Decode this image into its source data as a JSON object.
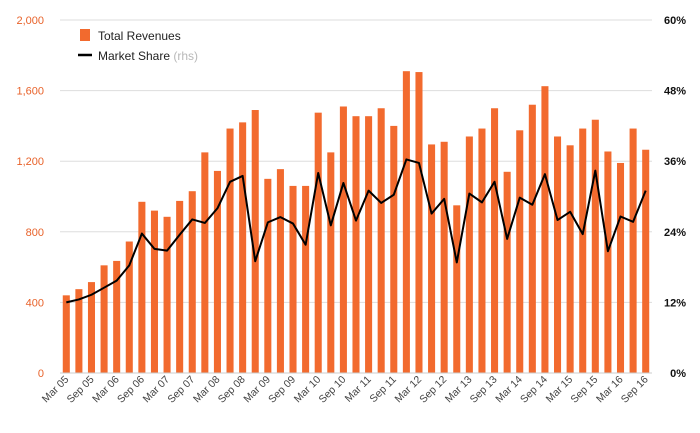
{
  "colors": {
    "bar": "#f26a2e",
    "line": "#000000",
    "grid": "#dddddd",
    "left_axis_text": "#e8622a",
    "right_axis_text": "#111111"
  },
  "chart_data": {
    "type": "bar",
    "title": "",
    "xlabel": "",
    "ylabel": "",
    "categories": [
      "Mar 05",
      "Jun 05",
      "Sep 05",
      "Dec 05",
      "Mar 06",
      "Jun 06",
      "Sep 06",
      "Dec 06",
      "Mar 07",
      "Jun 07",
      "Sep 07",
      "Dec 07",
      "Mar 08",
      "Jun 08",
      "Sep 08",
      "Dec 08",
      "Mar 09",
      "Jun 09",
      "Sep 09",
      "Dec 09",
      "Mar 10",
      "Jun 10",
      "Sep 10",
      "Dec 10",
      "Mar 11",
      "Jun 11",
      "Sep 11",
      "Dec 11",
      "Mar 12",
      "Jun 12",
      "Sep 12",
      "Dec 12",
      "Mar 13",
      "Jun 13",
      "Sep 13",
      "Dec 13",
      "Mar 14",
      "Jun 14",
      "Sep 14",
      "Dec 14",
      "Mar 15",
      "Jun 15",
      "Sep 15",
      "Dec 15",
      "Mar 16",
      "Jun 16",
      "Sep 16"
    ],
    "x_tick_labels": [
      "Mar 05",
      "Sep 05",
      "Mar 06",
      "Sep 06",
      "Mar 07",
      "Sep 07",
      "Mar 08",
      "Sep 08",
      "Mar 09",
      "Sep 09",
      "Mar 10",
      "Sep 10",
      "Mar 11",
      "Sep 11",
      "Mar 12",
      "Sep 12",
      "Mar 13",
      "Sep 13",
      "Mar 14",
      "Sep 14",
      "Mar 15",
      "Sep 15",
      "Mar 16",
      "Sep 16"
    ],
    "series": [
      {
        "name": "Total Revenues",
        "type": "bar",
        "axis": "left",
        "values": [
          440,
          475,
          515,
          610,
          635,
          745,
          970,
          920,
          885,
          975,
          1030,
          1250,
          1145,
          1385,
          1420,
          1490,
          1100,
          1155,
          1060,
          1060,
          1475,
          1250,
          1510,
          1455,
          1455,
          1500,
          1400,
          1710,
          1705,
          1295,
          1310,
          950,
          1340,
          1385,
          1500,
          1140,
          1375,
          1520,
          1625,
          1340,
          1290,
          1385,
          1435,
          1255,
          1190,
          1385,
          1265
        ]
      },
      {
        "name": "Market Share",
        "name_suffix": "(rhs)",
        "type": "line",
        "axis": "right",
        "values": [
          12.0,
          12.5,
          13.3,
          14.5,
          15.7,
          18.3,
          23.7,
          21.1,
          20.8,
          23.5,
          26.1,
          25.5,
          28.0,
          32.5,
          33.5,
          19.0,
          25.6,
          26.5,
          25.4,
          21.8,
          34.0,
          25.1,
          32.3,
          25.9,
          31.0,
          28.9,
          30.3,
          36.3,
          35.7,
          27.1,
          29.6,
          18.8,
          30.5,
          29.0,
          32.5,
          22.8,
          29.8,
          28.6,
          33.8,
          26.0,
          27.4,
          23.6,
          34.4,
          20.7,
          26.6,
          25.7,
          31.0
        ]
      }
    ],
    "left_axis": {
      "ylim": [
        0,
        2000
      ],
      "ticks": [
        0,
        400,
        800,
        1200,
        1600,
        2000
      ],
      "tick_labels": [
        "0",
        "400",
        "800",
        "1,200",
        "1,600",
        "2,000"
      ]
    },
    "right_axis": {
      "ylim": [
        0,
        60
      ],
      "ticks": [
        0,
        12,
        24,
        36,
        48,
        60
      ],
      "tick_labels": [
        "0%",
        "12%",
        "24%",
        "36%",
        "48%",
        "60%"
      ]
    },
    "grid": true,
    "legend": {
      "position": "top-left"
    }
  }
}
